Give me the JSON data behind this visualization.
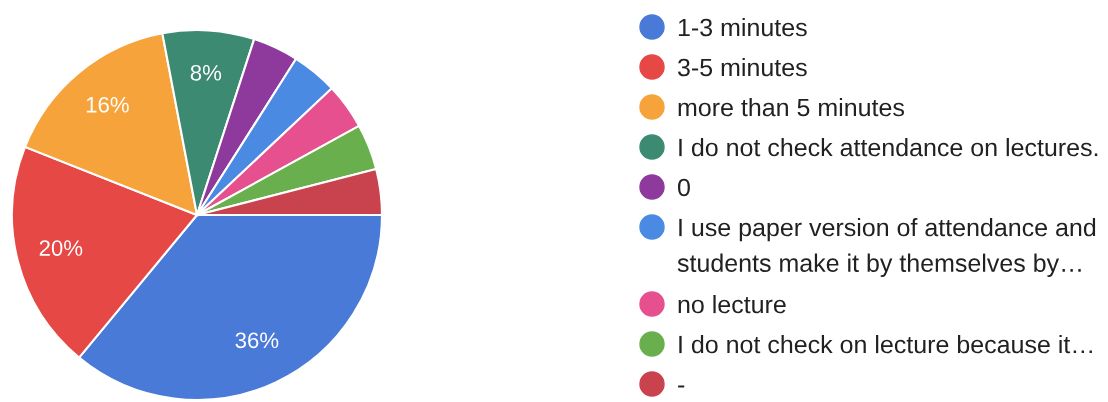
{
  "chart_data": {
    "type": "pie",
    "categories": [
      "1-3 minutes",
      "3-5 minutes",
      "more than 5 minutes",
      "I do not check attendance on lectures.",
      "0",
      "I use paper version of attendance and students make it by themselves by…",
      "no lecture",
      "I do not check on lecture because it…",
      "-"
    ],
    "values": [
      36,
      20,
      16,
      8,
      4,
      4,
      4,
      4,
      4
    ],
    "colors": [
      "#4a7ad8",
      "#e54845",
      "#f7a33c",
      "#3d8a72",
      "#8e3a9d",
      "#4b8ae2",
      "#e6508f",
      "#6aaf4d",
      "#c9434f"
    ],
    "value_labels": [
      "36%",
      "20%",
      "16%",
      "8%",
      null,
      null,
      null,
      null,
      null
    ],
    "legend": "right"
  }
}
